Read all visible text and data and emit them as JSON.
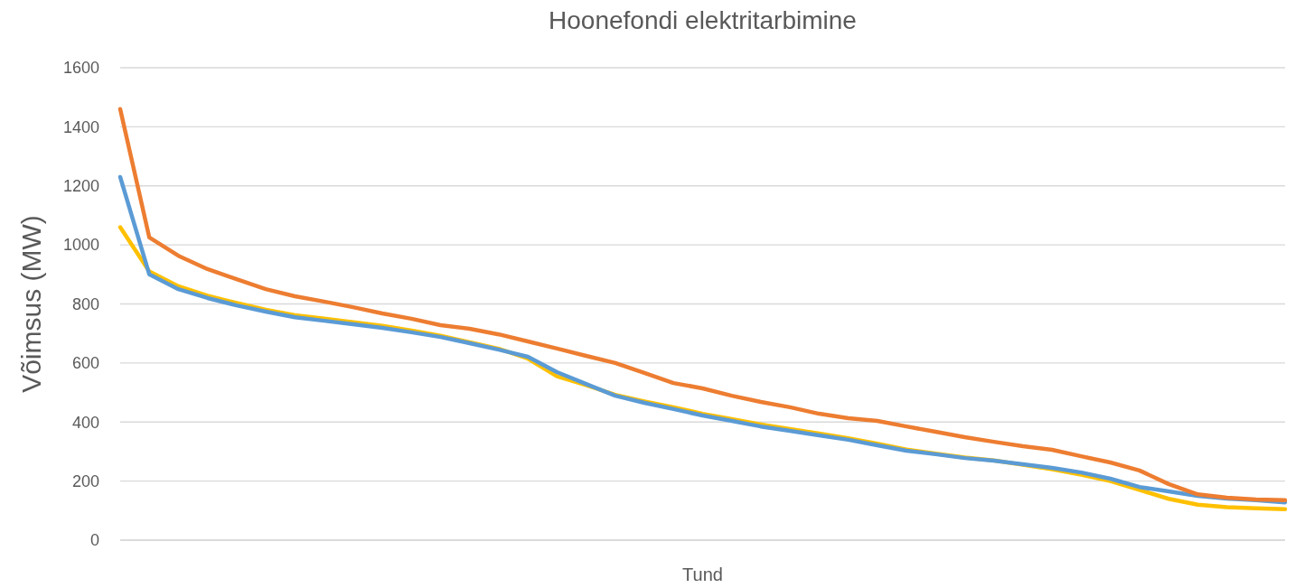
{
  "chart_data": {
    "type": "line",
    "title": "Hoonefondi elektritarbimine",
    "xlabel": "Tund",
    "ylabel": "Võimsus (MW)",
    "categories": [
      null,
      null,
      null,
      null,
      null,
      null,
      null,
      null,
      null,
      null,
      null,
      null,
      null,
      null,
      null,
      null,
      null,
      null,
      null,
      null,
      null,
      null,
      null,
      null,
      null,
      null,
      null,
      null,
      null,
      null,
      null,
      null,
      null,
      null,
      null,
      null,
      null,
      null,
      null,
      null,
      null
    ],
    "ylim": [
      0,
      1600
    ],
    "yticks": [
      0,
      200,
      400,
      600,
      800,
      1000,
      1200,
      1400,
      1600
    ],
    "grid": "y",
    "marker": "none",
    "line_style": "solid",
    "series": [
      {
        "color": "#ffc000",
        "values": [
          1060,
          910,
          860,
          828,
          803,
          780,
          762,
          750,
          738,
          726,
          710,
          692,
          670,
          648,
          615,
          555,
          525,
          492,
          470,
          450,
          428,
          410,
          392,
          376,
          361,
          345,
          327,
          307,
          293,
          280,
          270,
          255,
          240,
          222,
          200,
          170,
          140,
          120,
          112,
          108,
          105
        ]
      },
      {
        "color": "#5b9bd5",
        "values": [
          1230,
          900,
          850,
          820,
          795,
          774,
          755,
          743,
          731,
          719,
          704,
          688,
          667,
          645,
          621,
          569,
          529,
          489,
          465,
          444,
          422,
          404,
          385,
          370,
          355,
          340,
          321,
          303,
          291,
          278,
          269,
          257,
          245,
          229,
          208,
          180,
          165,
          150,
          141,
          135,
          128
        ]
      },
      {
        "color": "#ed7d31",
        "values": [
          1460,
          1025,
          963,
          918,
          884,
          850,
          826,
          808,
          789,
          768,
          750,
          728,
          716,
          697,
          673,
          649,
          624,
          600,
          566,
          532,
          514,
          489,
          468,
          450,
          428,
          413,
          404,
          385,
          367,
          349,
          333,
          318,
          306,
          284,
          263,
          236,
          190,
          155,
          144,
          138,
          135
        ]
      }
    ]
  }
}
